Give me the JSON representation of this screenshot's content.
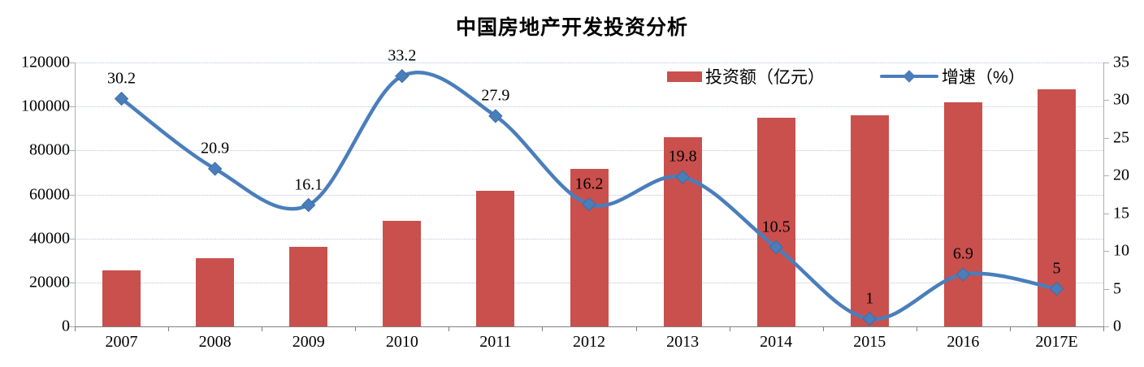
{
  "title": "中国房地产开发投资分析",
  "legend": [
    {
      "label": "投资额（亿元）",
      "type": "bar",
      "color": "#c9504d"
    },
    {
      "label": "增速（%）",
      "type": "line",
      "color": "#4a7ebb"
    }
  ],
  "colors": {
    "bar": "#c9504d",
    "line": "#4a7ebb",
    "marker_stroke": "#3c6ca8",
    "grid": "#b9c4de",
    "axis_light": "#a6afc2",
    "axis_dark": "#7f7f7f",
    "text": "#000000",
    "background": "#ffffff"
  },
  "chart_data": {
    "type": "bar",
    "subtype": "combo bar + smooth line, dual axis",
    "title": "中国房地产开发投资分析",
    "categories": [
      "2007",
      "2008",
      "2009",
      "2010",
      "2011",
      "2012",
      "2013",
      "2014",
      "2015",
      "2016",
      "2017E"
    ],
    "series": [
      {
        "name": "投资额（亿元）",
        "type": "bar",
        "axis": "left",
        "color": "#c9504d",
        "values": [
          25300,
          31200,
          36200,
          48100,
          61600,
          71800,
          86000,
          95000,
          96000,
          102000,
          107700
        ]
      },
      {
        "name": "增速（%）",
        "type": "line",
        "axis": "right",
        "color": "#4a7ebb",
        "marker": "diamond",
        "values": [
          30.2,
          20.9,
          16.1,
          33.2,
          27.9,
          16.2,
          19.8,
          10.5,
          1,
          6.9,
          5
        ],
        "data_labels": [
          "30.2",
          "20.9",
          "16.1",
          "33.2",
          "27.9",
          "16.2",
          "19.8",
          "10.5",
          "1",
          "6.9",
          "5"
        ]
      }
    ],
    "left_axis": {
      "label": "",
      "min": 0,
      "max": 120000,
      "step": 20000,
      "ticks": [
        "0",
        "20000",
        "40000",
        "60000",
        "80000",
        "100000",
        "120000"
      ]
    },
    "right_axis": {
      "label": "",
      "min": 0,
      "max": 35,
      "step": 5,
      "ticks": [
        "0",
        "5",
        "10",
        "15",
        "20",
        "25",
        "30",
        "35"
      ]
    },
    "grid": "horizontal dotted, from left axis ticks",
    "legend_position": "inside top-right"
  }
}
